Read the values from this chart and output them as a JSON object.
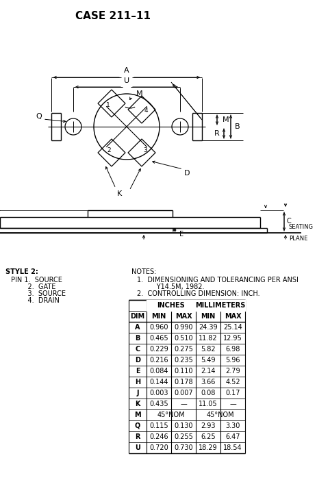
{
  "title": "CASE 211–11",
  "style_lines": [
    "STYLE 2:",
    "PIN 1.  SOURCE",
    "    2.  GATE",
    "    3.  SOURCE",
    "    4.  DRAIN"
  ],
  "notes_lines": [
    "NOTES:",
    "1.  DIMENSIONING AND TOLERANCING PER ANSI",
    "      Y14.5M, 1982.",
    "2.  CONTROLLING DIMENSION: INCH."
  ],
  "table_rows": [
    [
      "A",
      "0.960",
      "0.990",
      "24.39",
      "25.14"
    ],
    [
      "B",
      "0.465",
      "0.510",
      "11.82",
      "12.95"
    ],
    [
      "C",
      "0.229",
      "0.275",
      "5.82",
      "6.98"
    ],
    [
      "D",
      "0.216",
      "0.235",
      "5.49",
      "5.96"
    ],
    [
      "E",
      "0.084",
      "0.110",
      "2.14",
      "2.79"
    ],
    [
      "H",
      "0.144",
      "0.178",
      "3.66",
      "4.52"
    ],
    [
      "J",
      "0.003",
      "0.007",
      "0.08",
      "0.17"
    ],
    [
      "K",
      "0.435",
      "—",
      "11.05",
      "—"
    ],
    [
      "M",
      "45°NOM",
      "",
      "45°NOM",
      ""
    ],
    [
      "Q",
      "0.115",
      "0.130",
      "2.93",
      "3.30"
    ],
    [
      "R",
      "0.246",
      "0.255",
      "6.25",
      "6.47"
    ],
    [
      "U",
      "0.720",
      "0.730",
      "18.29",
      "18.54"
    ]
  ]
}
